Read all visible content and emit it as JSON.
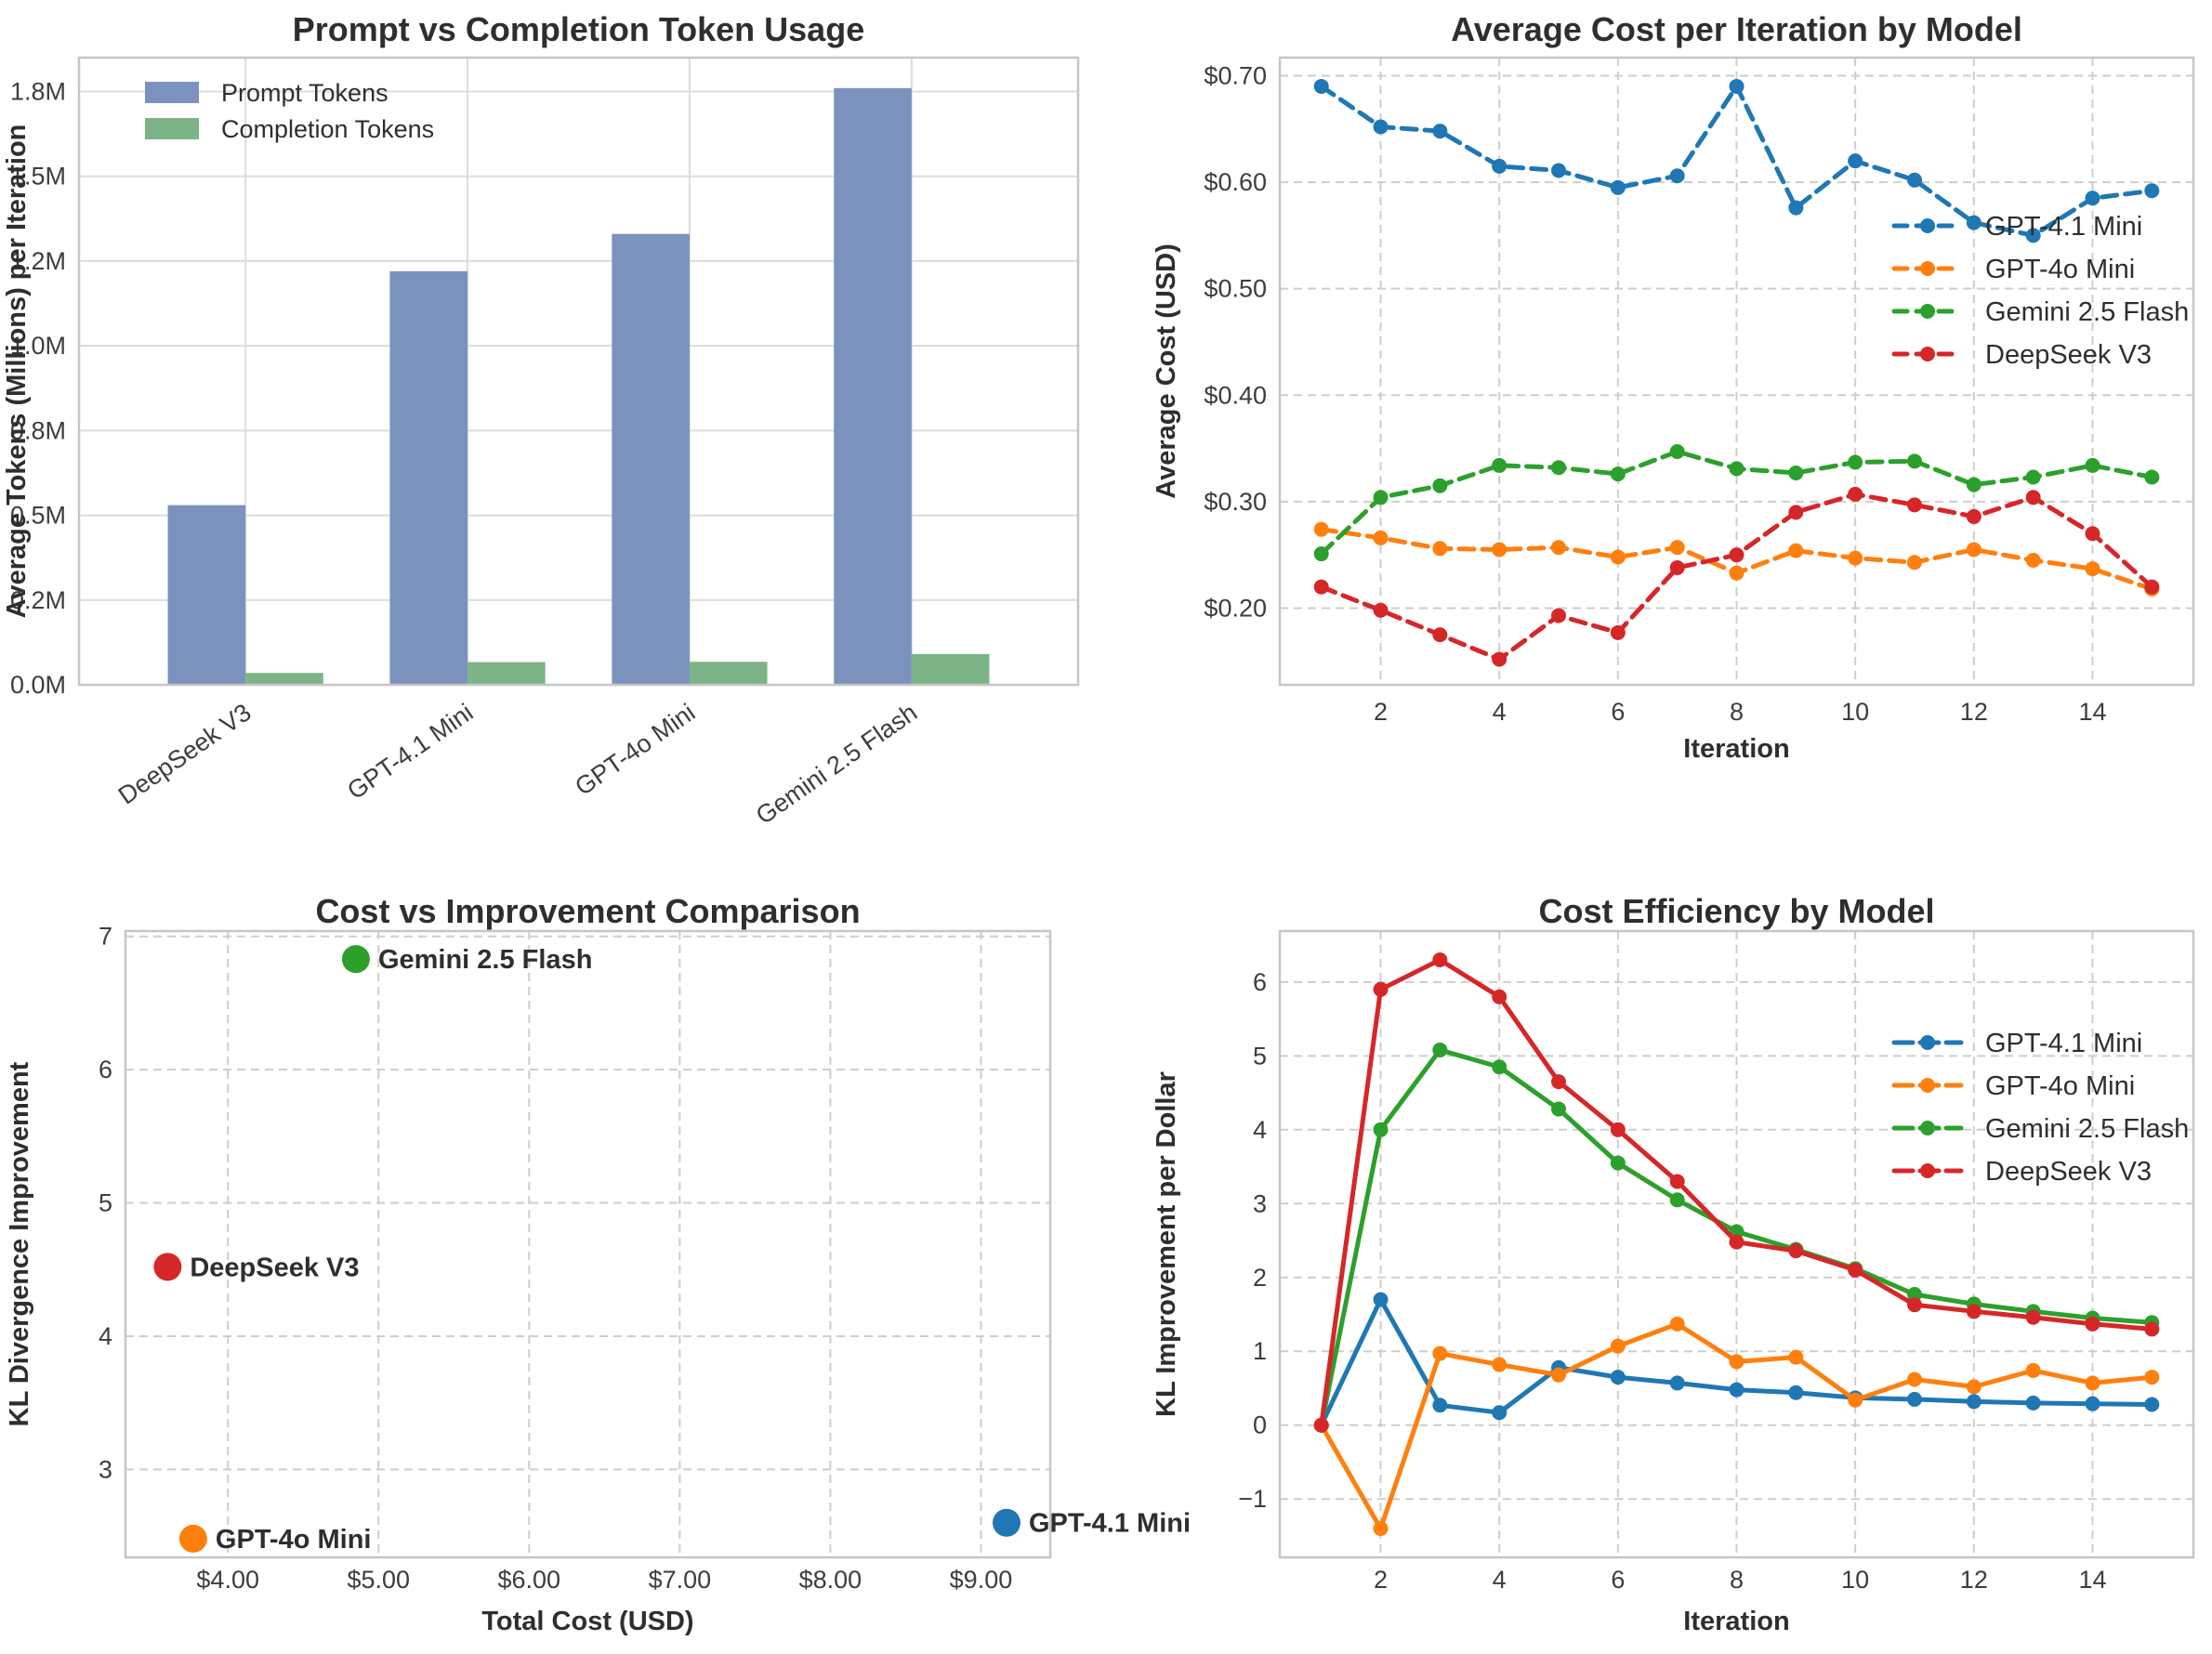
{
  "figure": {
    "background": "#ffffff",
    "text_color": "#2e2e2e",
    "tick_color": "#3d3d3d",
    "grid_color_solid": "#dcdcdc",
    "grid_color_dashed": "#cdcdcd",
    "spine_color": "#c6c6c6"
  },
  "chart_data": [
    {
      "id": "token-usage",
      "type": "bar",
      "title": "Prompt vs Completion Token Usage",
      "xlabel": "",
      "ylabel": "Average Tokens (Millions) per Iteration",
      "categories": [
        "DeepSeek V3",
        "GPT-4.1 Mini",
        "GPT-4o Mini",
        "Gemini 2.5 Flash"
      ],
      "series": [
        {
          "name": "Prompt Tokens",
          "color": "#7b92be",
          "values": [
            0.53,
            1.22,
            1.33,
            1.76
          ]
        },
        {
          "name": "Completion Tokens",
          "color": "#7cb487",
          "values": [
            0.035,
            0.067,
            0.068,
            0.091
          ]
        }
      ],
      "xticks": [
        0,
        1,
        2,
        3
      ],
      "yticks": [
        0,
        0.25,
        0.5,
        0.75,
        1.0,
        1.25,
        1.5,
        1.75
      ],
      "ytick_labels": [
        "0.0M",
        "0.2M",
        "0.5M",
        "0.8M",
        "1.0M",
        "1.2M",
        "1.5M",
        "1.8M"
      ],
      "xlim": [
        -0.75,
        3.75
      ],
      "ylim": [
        0,
        1.85
      ],
      "bar_width": 0.35,
      "grid": "solid",
      "legend_position": "upper left"
    },
    {
      "id": "avg-cost",
      "type": "line",
      "line_style": "dashed",
      "title": "Average Cost per Iteration by Model",
      "xlabel": "Iteration",
      "ylabel": "Average Cost (USD)",
      "x": [
        1,
        2,
        3,
        4,
        5,
        6,
        7,
        8,
        9,
        10,
        11,
        12,
        13,
        14,
        15
      ],
      "series": [
        {
          "name": "GPT-4.1 Mini",
          "color": "#1f77b4",
          "values": [
            0.69,
            0.652,
            0.648,
            0.615,
            0.611,
            0.595,
            0.606,
            0.69,
            0.576,
            0.62,
            0.602,
            0.562,
            0.55,
            0.585,
            0.592
          ]
        },
        {
          "name": "GPT-4o Mini",
          "color": "#ff7f0e",
          "values": [
            0.274,
            0.266,
            0.256,
            0.255,
            0.257,
            0.248,
            0.257,
            0.233,
            0.254,
            0.247,
            0.243,
            0.255,
            0.245,
            0.237,
            0.218
          ]
        },
        {
          "name": "Gemini 2.5 Flash",
          "color": "#2ca02c",
          "values": [
            0.251,
            0.304,
            0.315,
            0.334,
            0.332,
            0.326,
            0.347,
            0.331,
            0.327,
            0.337,
            0.338,
            0.316,
            0.323,
            0.334,
            0.323
          ]
        },
        {
          "name": "DeepSeek V3",
          "color": "#d62728",
          "values": [
            0.22,
            0.198,
            0.175,
            0.152,
            0.193,
            0.177,
            0.238,
            0.25,
            0.29,
            0.307,
            0.297,
            0.286,
            0.304,
            0.27,
            0.22
          ]
        }
      ],
      "xticks": [
        2,
        4,
        6,
        8,
        10,
        12,
        14
      ],
      "xtick_labels": [
        "2",
        "4",
        "6",
        "8",
        "10",
        "12",
        "14"
      ],
      "yticks": [
        0.2,
        0.3,
        0.4,
        0.5,
        0.6,
        0.7
      ],
      "ytick_labels": [
        "$0.20",
        "$0.30",
        "$0.40",
        "$0.50",
        "$0.60",
        "$0.70"
      ],
      "xlim": [
        0.3,
        15.7
      ],
      "ylim": [
        0.128,
        0.717
      ],
      "grid": "dashed",
      "legend_position": "center right"
    },
    {
      "id": "cost-vs-improvement",
      "type": "scatter",
      "title": "Cost vs Improvement Comparison",
      "xlabel": "Total Cost (USD)",
      "ylabel": "KL Divergence Improvement",
      "points": [
        {
          "label": "Gemini 2.5 Flash",
          "x": 4.85,
          "y": 6.83,
          "color": "#2ca02c"
        },
        {
          "label": "DeepSeek V3",
          "x": 3.6,
          "y": 4.52,
          "color": "#d62728"
        },
        {
          "label": "GPT-4o Mini",
          "x": 3.77,
          "y": 2.48,
          "color": "#ff7f0e"
        },
        {
          "label": "GPT-4.1 Mini",
          "x": 9.17,
          "y": 2.6,
          "color": "#1f77b4"
        }
      ],
      "xticks": [
        4,
        5,
        6,
        7,
        8,
        9
      ],
      "xtick_labels": [
        "$4.00",
        "$5.00",
        "$6.00",
        "$7.00",
        "$8.00",
        "$9.00"
      ],
      "yticks": [
        3,
        4,
        5,
        6,
        7
      ],
      "ytick_labels": [
        "3",
        "4",
        "5",
        "6",
        "7"
      ],
      "xlim": [
        3.32,
        9.46
      ],
      "ylim": [
        2.34,
        7.04
      ],
      "grid": "dashed"
    },
    {
      "id": "cost-efficiency",
      "type": "line",
      "line_style": "solid",
      "title": "Cost Efficiency by Model",
      "xlabel": "Iteration",
      "ylabel": "KL Improvement per Dollar",
      "x": [
        1,
        2,
        3,
        4,
        5,
        6,
        7,
        8,
        9,
        10,
        11,
        12,
        13,
        14,
        15
      ],
      "series": [
        {
          "name": "GPT-4.1 Mini",
          "color": "#1f77b4",
          "values": [
            0,
            1.7,
            0.27,
            0.17,
            0.78,
            0.65,
            0.57,
            0.48,
            0.44,
            0.37,
            0.35,
            0.32,
            0.3,
            0.29,
            0.28
          ]
        },
        {
          "name": "GPT-4o Mini",
          "color": "#ff7f0e",
          "values": [
            0,
            -1.4,
            0.97,
            0.82,
            0.68,
            1.07,
            1.37,
            0.86,
            0.92,
            0.34,
            0.62,
            0.52,
            0.74,
            0.57,
            0.65
          ]
        },
        {
          "name": "Gemini 2.5 Flash",
          "color": "#2ca02c",
          "values": [
            0,
            4.0,
            5.08,
            4.85,
            4.28,
            3.55,
            3.05,
            2.62,
            2.38,
            2.12,
            1.77,
            1.64,
            1.54,
            1.45,
            1.39
          ]
        },
        {
          "name": "DeepSeek V3",
          "color": "#d62728",
          "values": [
            0,
            5.9,
            6.3,
            5.8,
            4.65,
            4.0,
            3.3,
            2.48,
            2.36,
            2.1,
            1.63,
            1.54,
            1.46,
            1.37,
            1.3
          ]
        }
      ],
      "xticks": [
        2,
        4,
        6,
        8,
        10,
        12,
        14
      ],
      "xtick_labels": [
        "2",
        "4",
        "6",
        "8",
        "10",
        "12",
        "14"
      ],
      "yticks": [
        -1,
        0,
        1,
        2,
        3,
        4,
        5,
        6
      ],
      "ytick_labels": [
        "−1",
        "0",
        "1",
        "2",
        "3",
        "4",
        "5",
        "6"
      ],
      "xlim": [
        0.3,
        15.7
      ],
      "ylim": [
        -1.79,
        6.69
      ],
      "grid": "dashed",
      "legend_position": "upper right"
    }
  ]
}
